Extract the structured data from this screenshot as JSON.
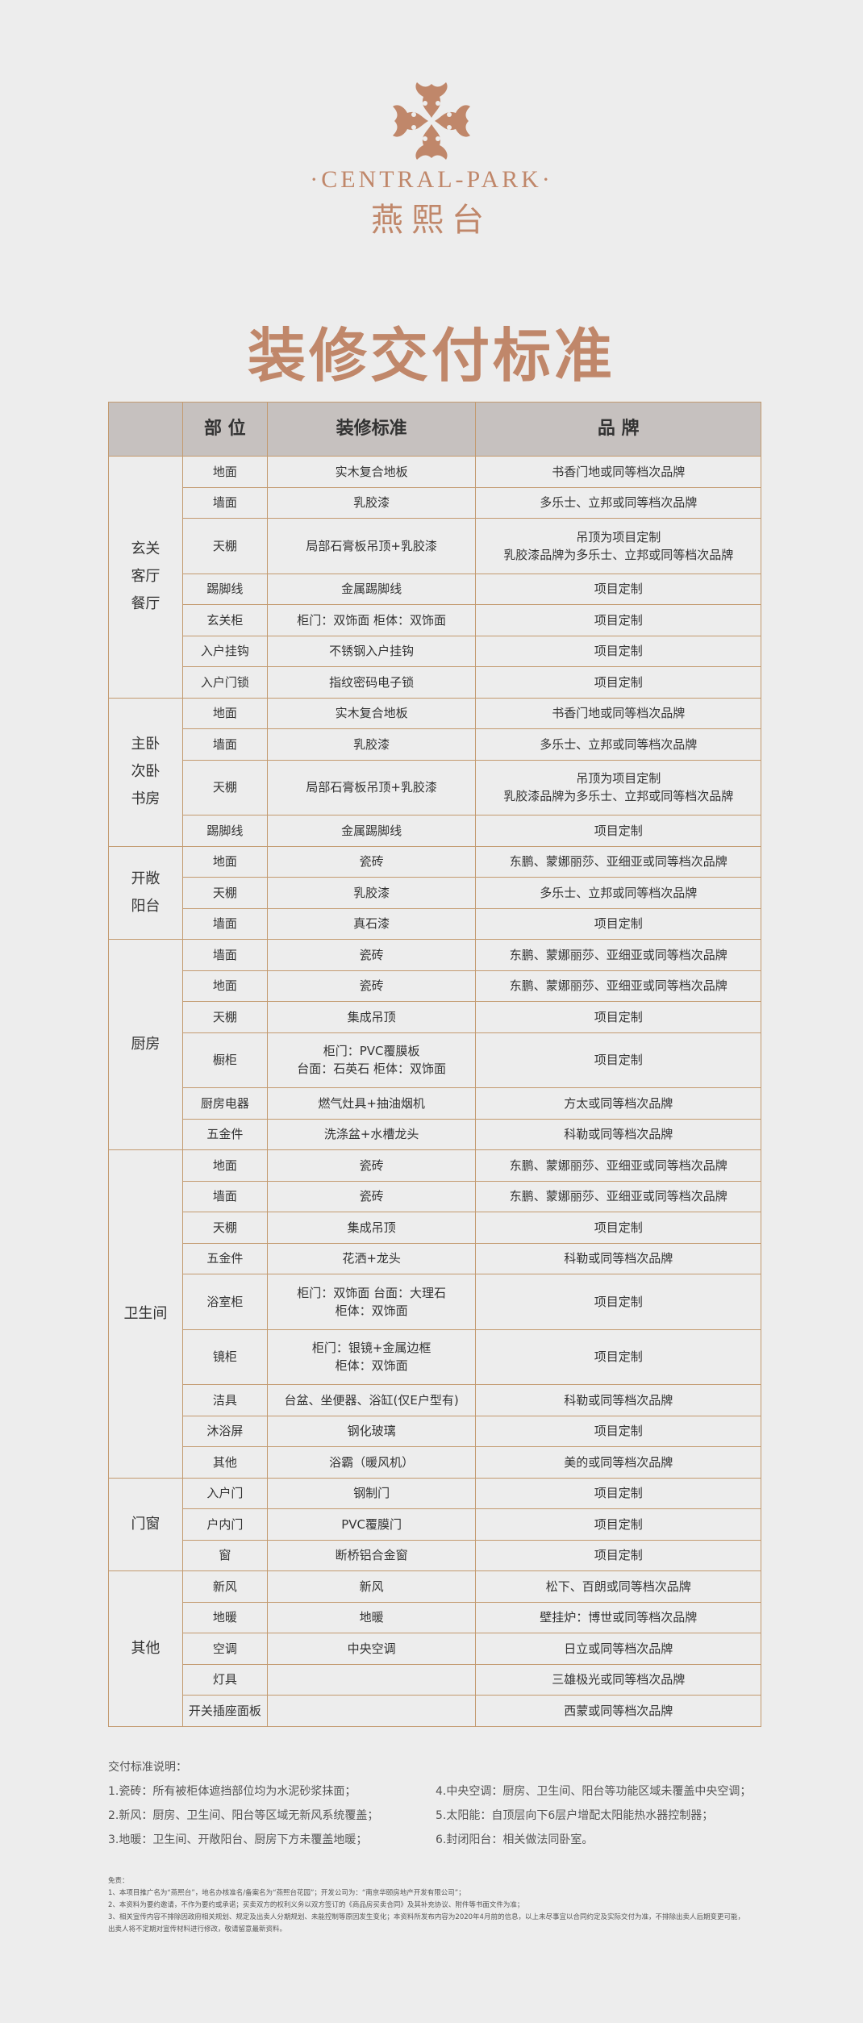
{
  "brand": {
    "en": "·CENTRAL-PARK·",
    "cn": "燕熙台",
    "color": "#c0876a"
  },
  "title": "装修交付标准",
  "table": {
    "headers": [
      "",
      "部 位",
      "装修标准",
      "品 牌"
    ],
    "groups": [
      {
        "name": [
          "玄关",
          "客厅",
          "餐厅"
        ],
        "rows": [
          [
            "地面",
            [
              "实木复合地板"
            ],
            [
              "书香门地或同等档次品牌"
            ]
          ],
          [
            "墙面",
            [
              "乳胶漆"
            ],
            [
              "多乐士、立邦或同等档次品牌"
            ]
          ],
          [
            "天棚",
            [
              "局部石膏板吊顶+乳胶漆"
            ],
            [
              "吊顶为项目定制",
              "乳胶漆品牌为多乐士、立邦或同等档次品牌"
            ]
          ],
          [
            "踢脚线",
            [
              "金属踢脚线"
            ],
            [
              "项目定制"
            ]
          ],
          [
            "玄关柜",
            [
              "柜门：双饰面  柜体：双饰面"
            ],
            [
              "项目定制"
            ]
          ],
          [
            "入户挂钩",
            [
              "不锈钢入户挂钩"
            ],
            [
              "项目定制"
            ]
          ],
          [
            "入户门锁",
            [
              "指纹密码电子锁"
            ],
            [
              "项目定制"
            ]
          ]
        ]
      },
      {
        "name": [
          "主卧",
          "次卧",
          "书房"
        ],
        "rows": [
          [
            "地面",
            [
              "实木复合地板"
            ],
            [
              "书香门地或同等档次品牌"
            ]
          ],
          [
            "墙面",
            [
              "乳胶漆"
            ],
            [
              "多乐士、立邦或同等档次品牌"
            ]
          ],
          [
            "天棚",
            [
              "局部石膏板吊顶+乳胶漆"
            ],
            [
              "吊顶为项目定制",
              "乳胶漆品牌为多乐士、立邦或同等档次品牌"
            ]
          ],
          [
            "踢脚线",
            [
              "金属踢脚线"
            ],
            [
              "项目定制"
            ]
          ]
        ]
      },
      {
        "name": [
          "开敞",
          "阳台"
        ],
        "rows": [
          [
            "地面",
            [
              "瓷砖"
            ],
            [
              "东鹏、蒙娜丽莎、亚细亚或同等档次品牌"
            ]
          ],
          [
            "天棚",
            [
              "乳胶漆"
            ],
            [
              "多乐士、立邦或同等档次品牌"
            ]
          ],
          [
            "墙面",
            [
              "真石漆"
            ],
            [
              "项目定制"
            ]
          ]
        ]
      },
      {
        "name": [
          "厨房"
        ],
        "rows": [
          [
            "墙面",
            [
              "瓷砖"
            ],
            [
              "东鹏、蒙娜丽莎、亚细亚或同等档次品牌"
            ]
          ],
          [
            "地面",
            [
              "瓷砖"
            ],
            [
              "东鹏、蒙娜丽莎、亚细亚或同等档次品牌"
            ]
          ],
          [
            "天棚",
            [
              "集成吊顶"
            ],
            [
              "项目定制"
            ]
          ],
          [
            "橱柜",
            [
              "柜门：PVC覆膜板",
              "台面：石英石  柜体：双饰面"
            ],
            [
              "项目定制"
            ]
          ],
          [
            "厨房电器",
            [
              "燃气灶具+抽油烟机"
            ],
            [
              "方太或同等档次品牌"
            ]
          ],
          [
            "五金件",
            [
              "洗涤盆+水槽龙头"
            ],
            [
              "科勒或同等档次品牌"
            ]
          ]
        ]
      },
      {
        "name": [
          "卫生间"
        ],
        "rows": [
          [
            "地面",
            [
              "瓷砖"
            ],
            [
              "东鹏、蒙娜丽莎、亚细亚或同等档次品牌"
            ]
          ],
          [
            "墙面",
            [
              "瓷砖"
            ],
            [
              "东鹏、蒙娜丽莎、亚细亚或同等档次品牌"
            ]
          ],
          [
            "天棚",
            [
              "集成吊顶"
            ],
            [
              "项目定制"
            ]
          ],
          [
            "五金件",
            [
              "花洒+龙头"
            ],
            [
              "科勒或同等档次品牌"
            ]
          ],
          [
            "浴室柜",
            [
              "柜门：双饰面  台面：大理石",
              "柜体：双饰面"
            ],
            [
              "项目定制"
            ]
          ],
          [
            "镜柜",
            [
              "柜门：银镜+金属边框",
              "柜体：双饰面"
            ],
            [
              "项目定制"
            ]
          ],
          [
            "洁具",
            [
              "台盆、坐便器、浴缸(仅E户型有)"
            ],
            [
              "科勒或同等档次品牌"
            ]
          ],
          [
            "沐浴屏",
            [
              "钢化玻璃"
            ],
            [
              "项目定制"
            ]
          ],
          [
            "其他",
            [
              "浴霸（暖风机）"
            ],
            [
              "美的或同等档次品牌"
            ]
          ]
        ]
      },
      {
        "name": [
          "门窗"
        ],
        "rows": [
          [
            "入户门",
            [
              "钢制门"
            ],
            [
              "项目定制"
            ]
          ],
          [
            "户内门",
            [
              "PVC覆膜门"
            ],
            [
              "项目定制"
            ]
          ],
          [
            "窗",
            [
              "断桥铝合金窗"
            ],
            [
              "项目定制"
            ]
          ]
        ]
      },
      {
        "name": [
          "其他"
        ],
        "rows": [
          [
            "新风",
            [
              "新风"
            ],
            [
              "松下、百朗或同等档次品牌"
            ]
          ],
          [
            "地暖",
            [
              "地暖"
            ],
            [
              "壁挂炉：博世或同等档次品牌"
            ]
          ],
          [
            "空调",
            [
              "中央空调"
            ],
            [
              "日立或同等档次品牌"
            ]
          ],
          [
            "灯具",
            [
              ""
            ],
            [
              "三雄极光或同等档次品牌"
            ]
          ],
          [
            "开关插座面板",
            [
              ""
            ],
            [
              "西蒙或同等档次品牌"
            ]
          ]
        ]
      }
    ]
  },
  "notes": {
    "heading": "交付标准说明：",
    "items": [
      "1.瓷砖：所有被柜体遮挡部位均为水泥砂浆抹面；",
      "4.中央空调：厨房、卫生间、阳台等功能区域未覆盖中央空调；",
      "2.新风：厨房、卫生间、阳台等区域无新风系统覆盖；",
      "5.太阳能：自顶层向下6层户增配太阳能热水器控制器；",
      "3.地暖：卫生间、开敞阳台、厨房下方未覆盖地暖；",
      "6.封闭阳台：相关做法同卧室。"
    ]
  },
  "disclaimer": {
    "heading": "免责：",
    "lines": [
      "1、本项目推广名为“燕熙台”，地名办核准名/备案名为“燕熙台花园”；开发公司为：“南京华颐房地产开发有限公司”；",
      "2、本资料为要约邀请，不作为要约或承诺；买卖双方的权利义务以双方签订的《商品房买卖合同》及其补充协议、附件等书面文件为准；",
      "3、相关宣传内容不排除因政府相关规划、规定及出卖人分期规划、未能控制等原因发生变化；本资料所发布内容为2020年4月前的信息，以上未尽事宜以合同约定及实际交付为准，不排除出卖人后期变更可能，",
      "出卖人将不定期对宣传材料进行修改，敬请留意最新资料。"
    ]
  }
}
